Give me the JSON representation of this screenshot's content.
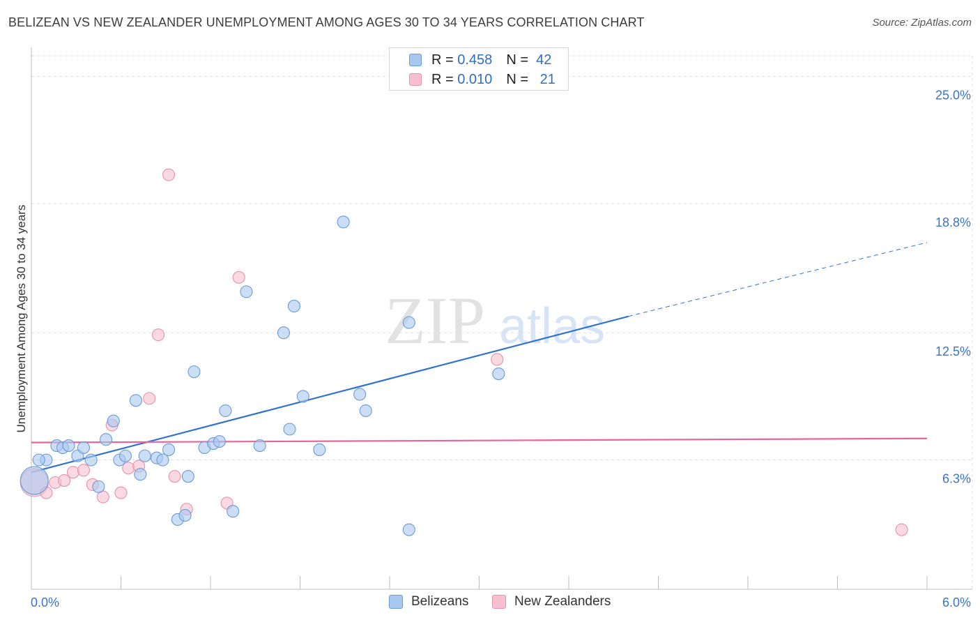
{
  "header": {
    "title": "BELIZEAN VS NEW ZEALANDER UNEMPLOYMENT AMONG AGES 30 TO 34 YEARS CORRELATION CHART",
    "source": "Source: ZipAtlas.com"
  },
  "watermark": {
    "zip": "ZIP",
    "atlas": "atlas"
  },
  "legend": {
    "rows": [
      {
        "r_label": "R =",
        "r_value": "0.458",
        "n_label": "N =",
        "n_value": "42"
      },
      {
        "r_label": "R =",
        "r_value": "0.010",
        "n_label": "N =",
        "n_value": "21"
      }
    ]
  },
  "bottom_legend": [
    "Belizeans",
    "New Zealanders"
  ],
  "colors": {
    "blue_fill": "#a9c8f0",
    "blue_stroke": "#6a9ad8",
    "blue_line": "#2f72d0",
    "pink_fill": "#f7bfd0",
    "pink_stroke": "#e592ae",
    "pink_line": "#e8649a",
    "tick_text": "#3a75c4",
    "grid": "#dddddd"
  },
  "chart_data": {
    "type": "scatter",
    "title": "BELIZEAN VS NEW ZEALANDER UNEMPLOYMENT AMONG AGES 30 TO 34 YEARS CORRELATION CHART",
    "xlabel": "",
    "ylabel": "Unemployment Among Ages 30 to 34 years",
    "xlim": [
      0.0,
      6.0
    ],
    "ylim": [
      0.0,
      26.0
    ],
    "x_tick_labels": [
      "0.0%",
      "6.0%"
    ],
    "y_ticks": [
      6.3,
      12.5,
      18.8,
      25.0
    ],
    "y_tick_labels": [
      "6.3%",
      "12.5%",
      "18.8%",
      "25.0%"
    ],
    "series": [
      {
        "name": "Belizeans",
        "r": 0.458,
        "n": 42,
        "trend": {
          "x0": 0.0,
          "y0": 5.7,
          "x1": 4.0,
          "y1": 13.3,
          "dashed_to_x": 6.0,
          "dashed_to_y": 16.9
        },
        "points": [
          {
            "x": 0.02,
            "y": 5.3,
            "size": "large"
          },
          {
            "x": 0.1,
            "y": 6.3
          },
          {
            "x": 0.17,
            "y": 7.0
          },
          {
            "x": 0.21,
            "y": 6.9
          },
          {
            "x": 0.25,
            "y": 7.0
          },
          {
            "x": 0.31,
            "y": 6.5
          },
          {
            "x": 0.35,
            "y": 6.9
          },
          {
            "x": 0.4,
            "y": 6.3
          },
          {
            "x": 0.45,
            "y": 5.0
          },
          {
            "x": 0.5,
            "y": 7.3
          },
          {
            "x": 0.55,
            "y": 8.2
          },
          {
            "x": 0.59,
            "y": 6.3
          },
          {
            "x": 0.63,
            "y": 6.5
          },
          {
            "x": 0.7,
            "y": 9.2
          },
          {
            "x": 0.73,
            "y": 5.6
          },
          {
            "x": 0.76,
            "y": 6.5
          },
          {
            "x": 0.84,
            "y": 6.4
          },
          {
            "x": 0.88,
            "y": 6.3
          },
          {
            "x": 0.92,
            "y": 6.8
          },
          {
            "x": 0.98,
            "y": 3.4
          },
          {
            "x": 1.03,
            "y": 3.6
          },
          {
            "x": 1.05,
            "y": 5.5
          },
          {
            "x": 1.09,
            "y": 10.6
          },
          {
            "x": 1.16,
            "y": 6.9
          },
          {
            "x": 1.22,
            "y": 7.1
          },
          {
            "x": 1.26,
            "y": 7.2
          },
          {
            "x": 1.3,
            "y": 8.7
          },
          {
            "x": 1.35,
            "y": 3.8
          },
          {
            "x": 1.53,
            "y": 7.0
          },
          {
            "x": 1.44,
            "y": 14.5
          },
          {
            "x": 1.69,
            "y": 12.5
          },
          {
            "x": 1.76,
            "y": 13.8
          },
          {
            "x": 1.73,
            "y": 7.8
          },
          {
            "x": 1.82,
            "y": 9.4
          },
          {
            "x": 1.93,
            "y": 6.8
          },
          {
            "x": 2.09,
            "y": 17.9
          },
          {
            "x": 2.2,
            "y": 9.5
          },
          {
            "x": 2.24,
            "y": 8.7
          },
          {
            "x": 2.53,
            "y": 13.0
          },
          {
            "x": 2.53,
            "y": 2.9
          },
          {
            "x": 3.13,
            "y": 10.5
          },
          {
            "x": 0.05,
            "y": 6.3
          }
        ]
      },
      {
        "name": "New Zealanders",
        "r": 0.01,
        "n": 21,
        "trend": {
          "x0": 0.0,
          "y0": 7.15,
          "x1": 6.0,
          "y1": 7.35
        },
        "points": [
          {
            "x": 0.02,
            "y": 5.2,
            "size": "large"
          },
          {
            "x": 0.1,
            "y": 4.7
          },
          {
            "x": 0.16,
            "y": 5.2
          },
          {
            "x": 0.22,
            "y": 5.3
          },
          {
            "x": 0.28,
            "y": 5.7
          },
          {
            "x": 0.35,
            "y": 5.8
          },
          {
            "x": 0.41,
            "y": 5.1
          },
          {
            "x": 0.48,
            "y": 4.5
          },
          {
            "x": 0.54,
            "y": 8.0
          },
          {
            "x": 0.6,
            "y": 4.7
          },
          {
            "x": 0.65,
            "y": 5.9
          },
          {
            "x": 0.72,
            "y": 6.0
          },
          {
            "x": 0.79,
            "y": 9.3
          },
          {
            "x": 0.85,
            "y": 12.4
          },
          {
            "x": 0.92,
            "y": 20.2
          },
          {
            "x": 0.96,
            "y": 5.5
          },
          {
            "x": 1.04,
            "y": 3.9
          },
          {
            "x": 1.31,
            "y": 4.2
          },
          {
            "x": 1.39,
            "y": 15.2
          },
          {
            "x": 3.12,
            "y": 11.2
          },
          {
            "x": 5.83,
            "y": 2.9
          }
        ]
      }
    ]
  }
}
